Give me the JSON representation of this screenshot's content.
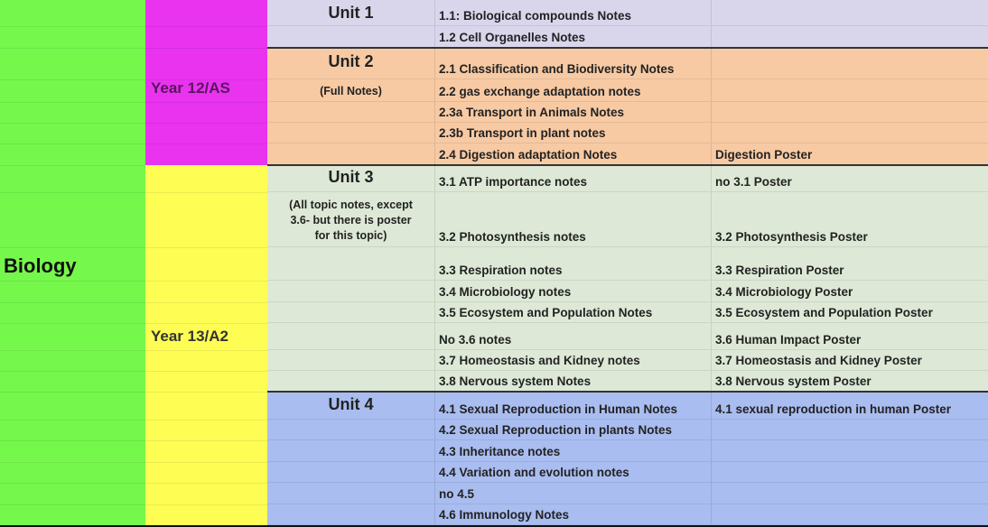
{
  "subject": "Biology",
  "years": [
    {
      "label": "Year 12/AS"
    },
    {
      "label": "Year 13/A2"
    }
  ],
  "units": [
    {
      "title": "Unit 1",
      "note": "",
      "color": "#d9d6ec"
    },
    {
      "title": "Unit 2",
      "note": "(Full Notes)",
      "color": "#f7caa4"
    },
    {
      "title": "Unit 3",
      "note": "(All topic notes, except 3.6- but there is poster for this topic)",
      "color": "#dde9d6"
    },
    {
      "title": "Unit 4",
      "note": "",
      "color": "#a9bdf0"
    }
  ],
  "colors": {
    "subject": "#76f74c",
    "year12": "#e933ef",
    "year13": "#fdfd54"
  },
  "rows": [
    {
      "unit": 0,
      "notes": "1.1: Biological compounds Notes",
      "poster": ""
    },
    {
      "unit": 0,
      "notes": "1.2 Cell Organelles Notes",
      "poster": ""
    },
    {
      "unit": 1,
      "notes": "2.1 Classification and Biodiversity Notes",
      "poster": ""
    },
    {
      "unit": 1,
      "notes": "2.2 gas exchange adaptation notes",
      "poster": ""
    },
    {
      "unit": 1,
      "notes": "2.3a Transport in Animals Notes",
      "poster": ""
    },
    {
      "unit": 1,
      "notes": "2.3b Transport in plant notes",
      "poster": ""
    },
    {
      "unit": 1,
      "notes": "2.4 Digestion adaptation Notes",
      "poster": "Digestion Poster"
    },
    {
      "unit": 2,
      "notes": "3.1 ATP importance notes",
      "poster": "no 3.1 Poster"
    },
    {
      "unit": 2,
      "notes": "3.2 Photosynthesis notes",
      "poster": "3.2 Photosynthesis Poster"
    },
    {
      "unit": 2,
      "notes": "3.3 Respiration notes",
      "poster": "3.3 Respiration Poster"
    },
    {
      "unit": 2,
      "notes": "3.4 Microbiology notes",
      "poster": "3.4 Microbiology Poster"
    },
    {
      "unit": 2,
      "notes": "3.5 Ecosystem and Population Notes",
      "poster": "3.5 Ecosystem and Population Poster"
    },
    {
      "unit": 2,
      "notes": "No 3.6 notes",
      "poster": "3.6 Human Impact Poster"
    },
    {
      "unit": 2,
      "notes": "3.7 Homeostasis and Kidney notes",
      "poster": "3.7 Homeostasis and Kidney Poster"
    },
    {
      "unit": 2,
      "notes": "3.8 Nervous system Notes",
      "poster": "3.8 Nervous system Poster"
    },
    {
      "unit": 3,
      "notes": "4.1 Sexual Reproduction in Human Notes",
      "poster": "4.1 sexual reproduction in human Poster"
    },
    {
      "unit": 3,
      "notes": "4.2 Sexual Reproduction in plants Notes",
      "poster": ""
    },
    {
      "unit": 3,
      "notes": "4.3 Inheritance notes",
      "poster": ""
    },
    {
      "unit": 3,
      "notes": "4.4 Variation and evolution notes",
      "poster": ""
    },
    {
      "unit": 3,
      "notes": "no 4.5",
      "poster": ""
    },
    {
      "unit": 3,
      "notes": "4.6 Immunology Notes",
      "poster": ""
    }
  ]
}
